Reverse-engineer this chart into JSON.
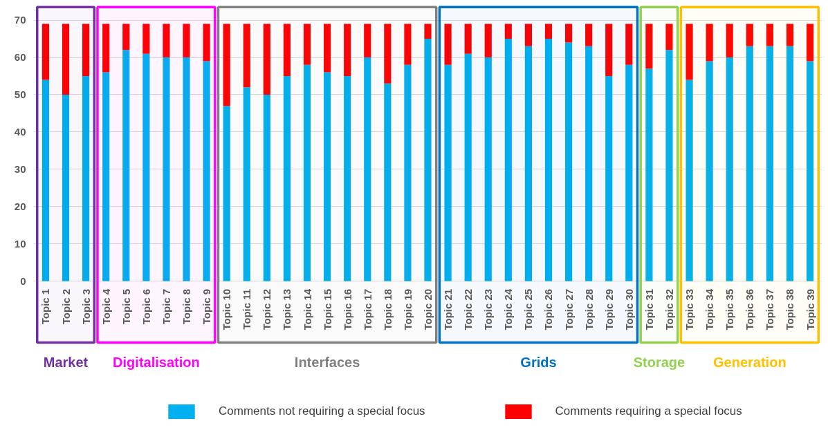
{
  "chart_data": {
    "type": "bar",
    "stacked": true,
    "categories": [
      "Topic 1",
      "Topic 2",
      "Topic 3",
      "Topic 4",
      "Topic 5",
      "Topic 6",
      "Topic 7",
      "Topic 8",
      "Topic 9",
      "Topic 10",
      "Topic 11",
      "Topic 12",
      "Topic 13",
      "Topic 14",
      "Topic 15",
      "Topic 16",
      "Topic 17",
      "Topic 18",
      "Topic 19",
      "Topic 20",
      "Topic 21",
      "Topic 22",
      "Topic 23",
      "Topic 24",
      "Topic 25",
      "Topic 26",
      "Topic 27",
      "Topic 28",
      "Topic 29",
      "Topic 30",
      "Topic 31",
      "Topic 32",
      "Topic 33",
      "Topic 34",
      "Topic 35",
      "Topic 36",
      "Topic 37",
      "Topic 38",
      "Topic 39"
    ],
    "series": [
      {
        "name": "Comments not requiring a special focus",
        "color": "#00b0f0",
        "values": [
          54,
          50,
          55,
          56,
          62,
          61,
          60,
          60,
          59,
          47,
          52,
          50,
          55,
          58,
          56,
          55,
          60,
          53,
          58,
          65,
          58,
          61,
          60,
          65,
          63,
          65,
          64,
          63,
          55,
          58,
          57,
          62,
          54,
          59,
          60,
          63,
          63,
          63,
          59
        ]
      },
      {
        "name": "Comments requiring a special focus",
        "color": "#ff0000",
        "values": [
          15,
          19,
          14,
          13,
          7,
          8,
          9,
          9,
          10,
          22,
          17,
          19,
          14,
          11,
          13,
          14,
          9,
          16,
          11,
          4,
          11,
          8,
          9,
          4,
          6,
          4,
          5,
          6,
          14,
          11,
          12,
          7,
          15,
          10,
          9,
          6,
          6,
          6,
          10
        ]
      }
    ],
    "ylim": [
      0,
      70
    ],
    "yticks": [
      0,
      10,
      20,
      30,
      40,
      50,
      60,
      70
    ],
    "grid": "y",
    "legend": "bottom",
    "bands": [
      {
        "axis": "x",
        "from": "Topic 1",
        "to": "Topic 3",
        "label": "Market",
        "color": "#7030a0"
      },
      {
        "axis": "x",
        "from": "Topic 4",
        "to": "Topic 9",
        "label": "Digitalisation",
        "color": "#ff00ff"
      },
      {
        "axis": "x",
        "from": "Topic 10",
        "to": "Topic 20",
        "label": "Interfaces",
        "color": "#808080"
      },
      {
        "axis": "x",
        "from": "Topic 21",
        "to": "Topic 30",
        "label": "Grids",
        "color": "#0070c0"
      },
      {
        "axis": "x",
        "from": "Topic 31",
        "to": "Topic 32",
        "label": "Storage",
        "color": "#92d050"
      },
      {
        "axis": "x",
        "from": "Topic 33",
        "to": "Topic 39",
        "label": "Generation",
        "color": "#ffc000"
      }
    ]
  }
}
